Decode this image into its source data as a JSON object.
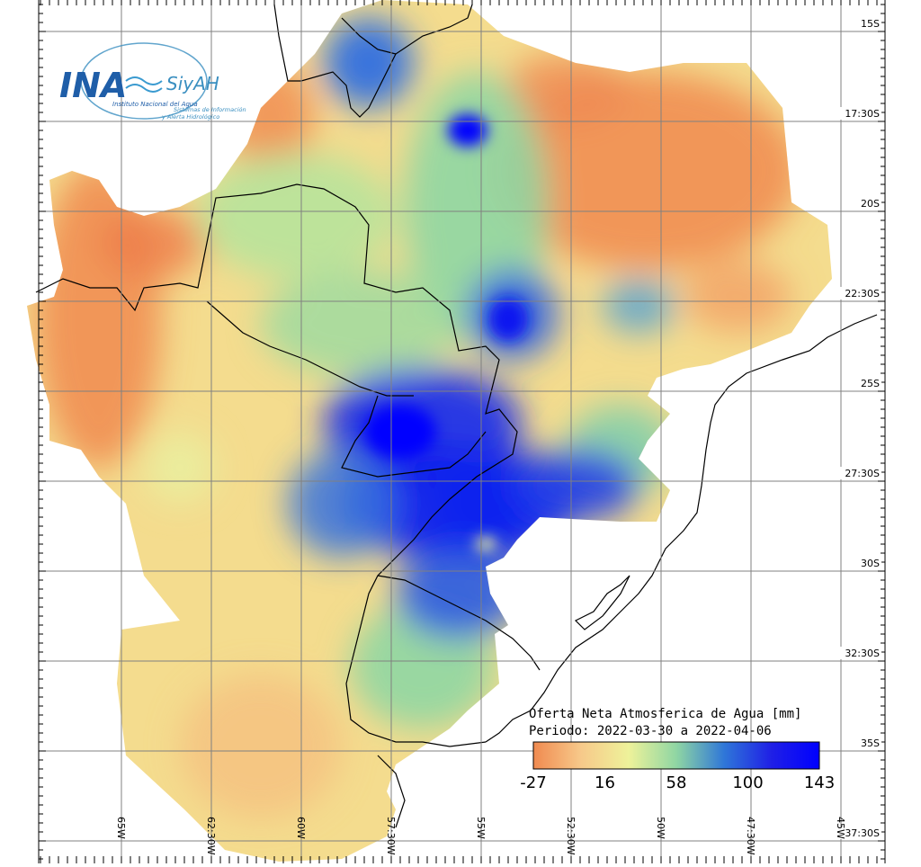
{
  "logo": {
    "brand": "INA",
    "subbrand": "SiyAH",
    "line1": "Instituto Nacional del Agua",
    "line2": "Sistemas de Información",
    "line3": "y Alerta Hidrológico"
  },
  "title": "Oferta Neta Atmosferica de Agua [mm]",
  "period": "Periodo: 2022-03-30 a 2022-04-06",
  "legend": {
    "min": -27,
    "max": 143,
    "ticks": [
      "-27",
      "16",
      "58",
      "100",
      "143"
    ],
    "colors": [
      "#f08a50",
      "#f7c98a",
      "#eef29a",
      "#8fd6a3",
      "#2f77d8",
      "#1f1fe6",
      "#0000ff"
    ]
  },
  "lat_labels": [
    "15S",
    "17:30S",
    "20S",
    "22:30S",
    "25S",
    "27:30S",
    "30S",
    "32:30S",
    "35S",
    "37:30S"
  ],
  "lon_labels": [
    "65W",
    "62:30W",
    "60W",
    "57:30W",
    "55W",
    "52:30W",
    "50W",
    "47:30W",
    "45W"
  ],
  "colors": {
    "dry": "#f08a50",
    "neutral": "#eef29a",
    "wet": "#1f1fe6",
    "grid": "#808080",
    "border": "#000000"
  }
}
